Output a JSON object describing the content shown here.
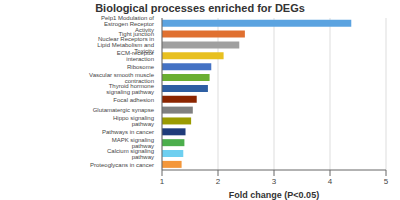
{
  "chart_data": {
    "type": "bar",
    "orientation": "horizontal",
    "title": "Biological processes enriched for DEGs",
    "xlabel": "Fold change (P<0.05)",
    "categories": [
      "Proteoglycans in cancer",
      "Calcium signaling pathway",
      "MAPK signaling pathway",
      "Pathways in cancer",
      "Hippo signaling pathway",
      "Glutamatergic synapse",
      "Focal adhesion",
      "Thyroid hormone signaling pathway",
      "Vascular smooth muscle contraction",
      "Ribosome",
      "ECM-receptor interaction",
      "Nuclear Receptors in Lipid Metabolism and Toxicity",
      "Tight junction",
      "Pelp1 Modulation of Estrogen Receptor Activity"
    ],
    "values": [
      1.35,
      1.38,
      1.4,
      1.42,
      1.52,
      1.55,
      1.62,
      1.82,
      1.85,
      1.88,
      2.1,
      2.38,
      2.48,
      4.38
    ],
    "colors": [
      "#f4973a",
      "#6ecff0",
      "#4cae4c",
      "#1f3c7a",
      "#9b9b00",
      "#808080",
      "#8b2500",
      "#2e5fa3",
      "#6aaf32",
      "#4472c4",
      "#e8c020",
      "#a0a0a0",
      "#e07030",
      "#5ba3e0"
    ],
    "xlim": [
      1,
      5
    ],
    "xticks": [
      1,
      2,
      3,
      4,
      5
    ],
    "grid": true
  }
}
